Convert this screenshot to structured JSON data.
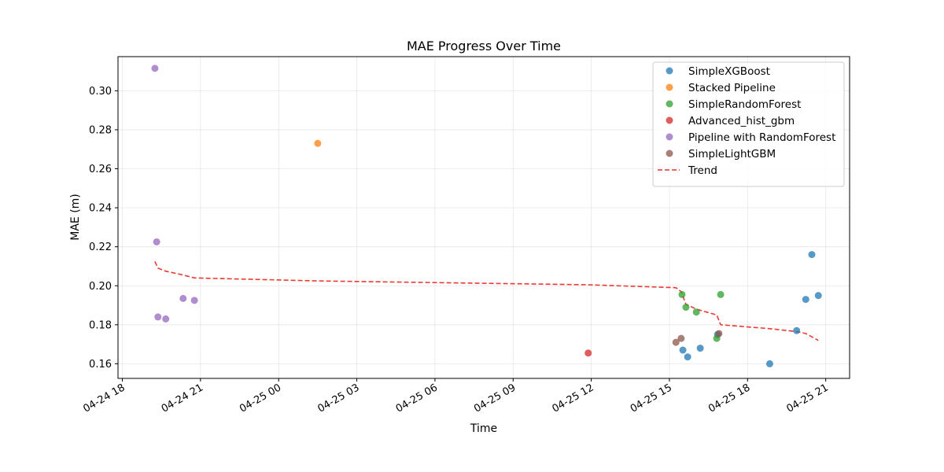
{
  "chart_data": {
    "type": "scatter",
    "title": "MAE Progress Over Time",
    "xlabel": "Time",
    "ylabel": "MAE (m)",
    "x_axis": {
      "min": "2025-04-24T17:50",
      "max": "2025-04-25T21:55",
      "tick_labels": [
        "04-24 18",
        "04-24 21",
        "04-25 00",
        "04-25 03",
        "04-25 06",
        "04-25 09",
        "04-25 12",
        "04-25 15",
        "04-25 18",
        "04-25 21"
      ],
      "tick_values": [
        "2025-04-24T18:00",
        "2025-04-24T21:00",
        "2025-04-25T00:00",
        "2025-04-25T03:00",
        "2025-04-25T06:00",
        "2025-04-25T09:00",
        "2025-04-25T12:00",
        "2025-04-25T15:00",
        "2025-04-25T18:00",
        "2025-04-25T21:00"
      ]
    },
    "ylim": [
      0.1525,
      0.3175
    ],
    "yticks": [
      0.16,
      0.18,
      0.2,
      0.22,
      0.24,
      0.26,
      0.28,
      0.3
    ],
    "ytick_labels": [
      "0.16",
      "0.18",
      "0.20",
      "0.22",
      "0.24",
      "0.26",
      "0.28",
      "0.30"
    ],
    "grid": true,
    "legend_position": "top-right",
    "series": [
      {
        "name": "SimpleXGBoost",
        "color": "#1f77b4",
        "points": [
          {
            "x": "2025-04-25T15:31",
            "y": 0.167
          },
          {
            "x": "2025-04-25T15:42",
            "y": 0.1635
          },
          {
            "x": "2025-04-25T16:11",
            "y": 0.168
          },
          {
            "x": "2025-04-25T16:51",
            "y": 0.175
          },
          {
            "x": "2025-04-25T18:51",
            "y": 0.16
          },
          {
            "x": "2025-04-25T19:53",
            "y": 0.177
          },
          {
            "x": "2025-04-25T20:14",
            "y": 0.193
          },
          {
            "x": "2025-04-25T20:28",
            "y": 0.216
          },
          {
            "x": "2025-04-25T20:43",
            "y": 0.195
          }
        ]
      },
      {
        "name": "Stacked Pipeline",
        "color": "#ff7f0e",
        "points": [
          {
            "x": "2025-04-25T01:30",
            "y": 0.273
          }
        ]
      },
      {
        "name": "SimpleRandomForest",
        "color": "#2ca02c",
        "points": [
          {
            "x": "2025-04-25T15:29",
            "y": 0.1955
          },
          {
            "x": "2025-04-25T15:38",
            "y": 0.189
          },
          {
            "x": "2025-04-25T16:02",
            "y": 0.1865
          },
          {
            "x": "2025-04-25T16:49",
            "y": 0.173
          },
          {
            "x": "2025-04-25T16:58",
            "y": 0.1955
          }
        ]
      },
      {
        "name": "Advanced_hist_gbm",
        "color": "#d62728",
        "points": [
          {
            "x": "2025-04-25T11:53",
            "y": 0.1655
          }
        ]
      },
      {
        "name": "Pipeline with RandomForest",
        "color": "#9467bd",
        "points": [
          {
            "x": "2025-04-24T19:15",
            "y": 0.3115
          },
          {
            "x": "2025-04-24T19:19",
            "y": 0.2225
          },
          {
            "x": "2025-04-24T19:22",
            "y": 0.184
          },
          {
            "x": "2025-04-24T19:40",
            "y": 0.183
          },
          {
            "x": "2025-04-24T20:20",
            "y": 0.1935
          },
          {
            "x": "2025-04-24T20:46",
            "y": 0.1925
          }
        ]
      },
      {
        "name": "SimpleLightGBM",
        "color": "#8c564b",
        "points": [
          {
            "x": "2025-04-25T15:15",
            "y": 0.171
          },
          {
            "x": "2025-04-25T15:27",
            "y": 0.173
          },
          {
            "x": "2025-04-25T16:54",
            "y": 0.1755
          }
        ]
      }
    ],
    "trend": {
      "name": "Trend",
      "color": "#e8302b",
      "style": "dashed",
      "points": [
        {
          "x": "2025-04-24T19:15",
          "y": 0.2125
        },
        {
          "x": "2025-04-24T19:22",
          "y": 0.209
        },
        {
          "x": "2025-04-24T19:40",
          "y": 0.2075
        },
        {
          "x": "2025-04-24T20:20",
          "y": 0.2055
        },
        {
          "x": "2025-04-24T20:46",
          "y": 0.204
        },
        {
          "x": "2025-04-25T01:30",
          "y": 0.2025
        },
        {
          "x": "2025-04-25T11:53",
          "y": 0.2005
        },
        {
          "x": "2025-04-25T15:15",
          "y": 0.199
        },
        {
          "x": "2025-04-25T15:27",
          "y": 0.197
        },
        {
          "x": "2025-04-25T15:38",
          "y": 0.1905
        },
        {
          "x": "2025-04-25T16:02",
          "y": 0.188
        },
        {
          "x": "2025-04-25T16:49",
          "y": 0.185
        },
        {
          "x": "2025-04-25T16:58",
          "y": 0.18
        },
        {
          "x": "2025-04-25T18:51",
          "y": 0.178
        },
        {
          "x": "2025-04-25T19:53",
          "y": 0.1765
        },
        {
          "x": "2025-04-25T20:14",
          "y": 0.1755
        },
        {
          "x": "2025-04-25T20:43",
          "y": 0.172
        }
      ]
    }
  }
}
